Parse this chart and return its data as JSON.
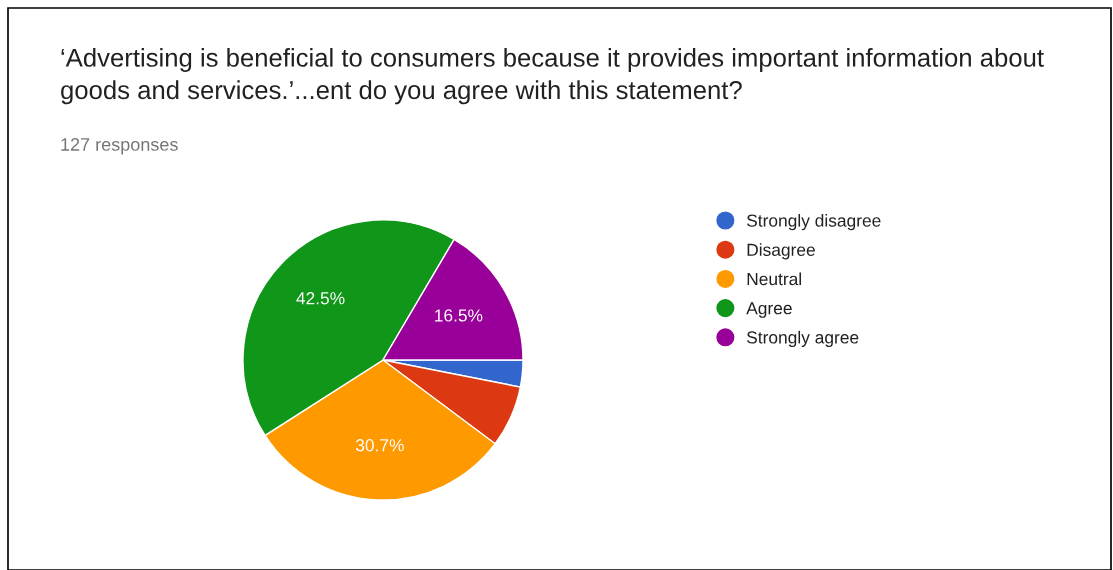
{
  "chart_data": {
    "type": "pie",
    "title": "‘Advertising is beneficial to consumers because it provides important information about goods and services.’...ent do you agree with this statement?",
    "subtitle": "127 responses",
    "categories": [
      "Strongly disagree",
      "Disagree",
      "Neutral",
      "Agree",
      "Strongly agree"
    ],
    "values": [
      3.1,
      7.1,
      30.7,
      42.5,
      16.5
    ],
    "colors": [
      "#3366cc",
      "#dc3912",
      "#ff9900",
      "#109618",
      "#990099"
    ],
    "value_labels": [
      null,
      null,
      "30.7%",
      "42.5%",
      "16.5%"
    ],
    "legend": "right"
  }
}
